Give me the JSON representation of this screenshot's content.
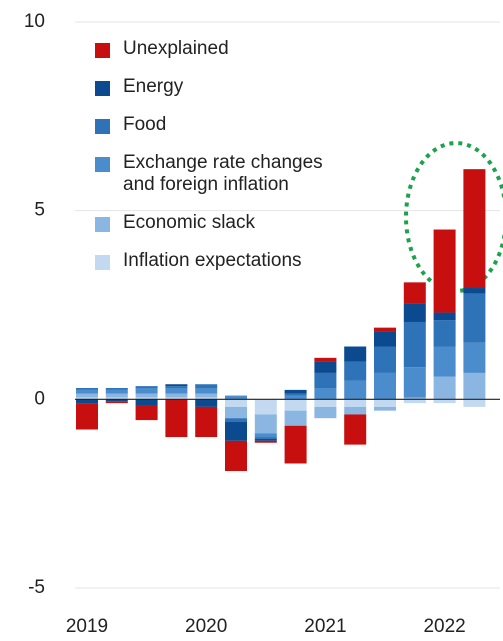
{
  "chart_data": {
    "type": "bar",
    "stacked": true,
    "categories": [
      "2019",
      null,
      null,
      null,
      "2020",
      null,
      null,
      null,
      "2021",
      null,
      null,
      null,
      "2022",
      null
    ],
    "series": [
      {
        "name": "Unexplained",
        "color": "#c80f0f",
        "values": [
          -0.7,
          -0.05,
          -0.4,
          -1.0,
          -0.8,
          -0.8,
          -0.05,
          -1.0,
          0.1,
          -0.8,
          0.1,
          0.55,
          2.2,
          3.15
        ]
      },
      {
        "name": "Energy",
        "color": "#0b4a8f",
        "values": [
          -0.1,
          -0.05,
          -0.15,
          0.05,
          -0.2,
          -0.5,
          -0.05,
          0.1,
          0.3,
          0.4,
          0.4,
          0.5,
          0.2,
          0.15
        ]
      },
      {
        "name": "Food",
        "color": "#2e72b8",
        "values": [
          0.05,
          0.05,
          0.05,
          0.05,
          0.1,
          -0.1,
          -0.05,
          0.05,
          0.4,
          0.5,
          0.7,
          1.2,
          0.7,
          1.3
        ]
      },
      {
        "name": "Exchange rate changes and foreign inflation",
        "color": "#4b8dcc",
        "values": [
          0.1,
          0.1,
          0.15,
          0.15,
          0.15,
          0.1,
          -0.1,
          0.1,
          0.3,
          0.5,
          0.7,
          0.8,
          0.8,
          0.8
        ]
      },
      {
        "name": "Economic slack",
        "color": "#8ab6e1",
        "values": [
          0.1,
          0.1,
          0.1,
          0.1,
          0.1,
          -0.3,
          -0.5,
          -0.4,
          -0.3,
          -0.2,
          -0.1,
          0.05,
          0.6,
          0.7
        ]
      },
      {
        "name": "Inflation expectations",
        "color": "#c3d9ef",
        "values": [
          0.05,
          0.05,
          0.05,
          0.05,
          0.05,
          -0.2,
          -0.4,
          -0.3,
          -0.2,
          -0.2,
          -0.2,
          -0.1,
          -0.1,
          -0.2
        ]
      }
    ],
    "ylim": [
      -5,
      10
    ],
    "yticks": [
      -5,
      0,
      5,
      10
    ],
    "grid": true
  }
}
